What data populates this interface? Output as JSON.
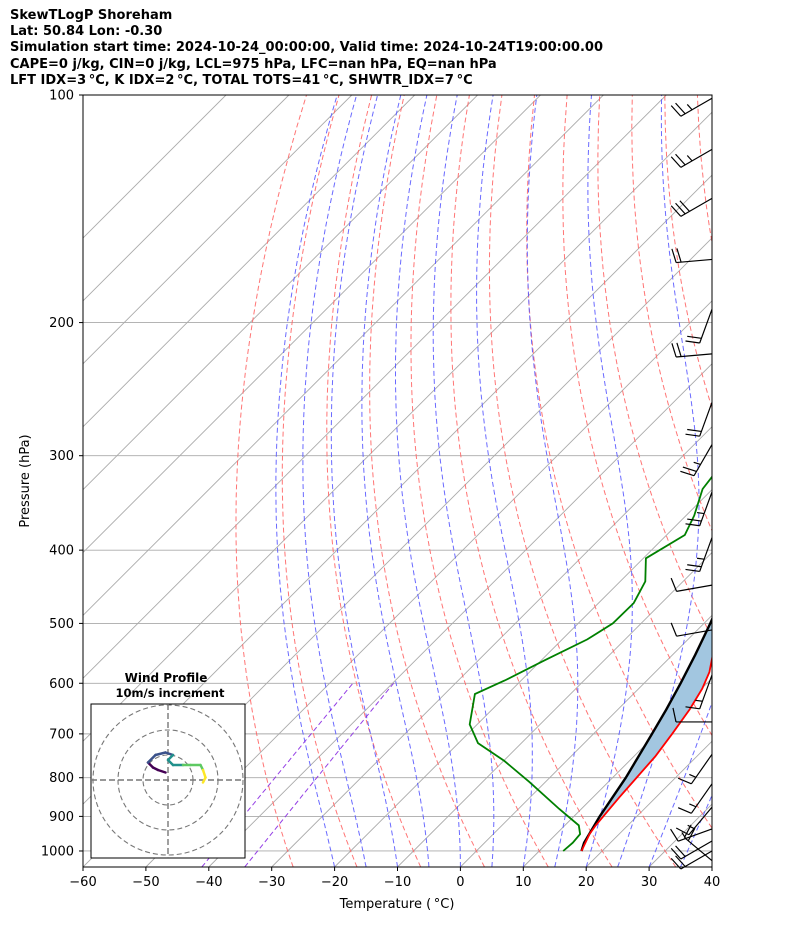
{
  "header": {
    "line1": "SkewTLogP Shoreham",
    "line2": "Lat: 50.84   Lon: -0.30",
    "line3": "Simulation start time: 2024-10-24_00:00:00, Valid time: 2024-10-24T19:00:00.00",
    "line4": "CAPE=0 j/kg, CIN=0 j/kg, LCL=975 hPa, LFC=nan hPa, EQ=nan hPa",
    "line5": "LFT IDX=3 °C, K IDX=2 °C, TOTAL TOTS=41 °C, SHWTR_IDX=7 °C"
  },
  "chart_data": {
    "type": "line",
    "xlabel": "Temperature ( °C)",
    "ylabel": "Pressure (hPa)",
    "x_ticks": [
      "−60",
      "−50",
      "−40",
      "−30",
      "−20",
      "−10",
      "0",
      "10",
      "20",
      "30",
      "40"
    ],
    "y_ticks": [
      "100",
      "200",
      "300",
      "400",
      "500",
      "600",
      "700",
      "800",
      "900",
      "1000"
    ],
    "xlim": [
      -60,
      40
    ],
    "ylim": [
      1050,
      100
    ],
    "y_scale": "log",
    "grid": true,
    "colors": {
      "temperature": "#ff0000",
      "dewpoint": "#008000",
      "parcel": "#000000",
      "shading": "#a2c6e0",
      "dry_adiabats": "#ff6666",
      "moist_adiabats": "#5a5aff",
      "mixing_ratio": "#8a2be2",
      "isotherms": "#aaaaaa"
    },
    "series": [
      {
        "key": "temperature",
        "points": [
          [
            16.7,
            1000
          ],
          [
            16.0,
            975
          ],
          [
            15.3,
            950
          ],
          [
            14.9,
            925
          ],
          [
            14.2,
            850
          ],
          [
            13.4,
            750
          ],
          [
            12.5,
            700
          ],
          [
            11.4,
            650
          ],
          [
            10.1,
            610
          ],
          [
            8.6,
            580
          ],
          [
            6.0,
            545
          ],
          [
            4.0,
            518
          ],
          [
            2.0,
            492
          ],
          [
            0.3,
            465
          ],
          [
            -1.0,
            440
          ],
          [
            -2.0,
            420
          ],
          [
            -4.6,
            385
          ],
          [
            -6.6,
            360
          ],
          [
            -8.8,
            335
          ],
          [
            -10.3,
            310
          ],
          [
            -11.6,
            285
          ],
          [
            -12.6,
            260
          ],
          [
            -13.3,
            235
          ],
          [
            -13.1,
            212
          ],
          [
            -11.5,
            197
          ],
          [
            -9.0,
            180
          ],
          [
            -6.0,
            164
          ],
          [
            -4.3,
            150
          ],
          [
            -2.7,
            137
          ],
          [
            -1.6,
            125
          ],
          [
            -0.2,
            112
          ],
          [
            1.0,
            101
          ]
        ]
      },
      {
        "key": "dewpoint",
        "points": [
          [
            13.8,
            1000
          ],
          [
            14.0,
            975
          ],
          [
            13.8,
            950
          ],
          [
            12.2,
            925
          ],
          [
            6.5,
            880
          ],
          [
            -2.6,
            810
          ],
          [
            -9.9,
            760
          ],
          [
            -16.9,
            720
          ],
          [
            -21.2,
            680
          ],
          [
            -25.2,
            620
          ],
          [
            -22.6,
            595
          ],
          [
            -19.5,
            560
          ],
          [
            -16.0,
            525
          ],
          [
            -14.5,
            500
          ],
          [
            -14.4,
            470
          ],
          [
            -16.0,
            440
          ],
          [
            -19.6,
            410
          ],
          [
            -17.1,
            382
          ],
          [
            -18.7,
            360
          ],
          [
            -21.6,
            332
          ],
          [
            -22.4,
            310
          ],
          [
            -24.6,
            280
          ],
          [
            -25.9,
            262
          ],
          [
            -26.1,
            245
          ],
          [
            -26.9,
            225
          ],
          [
            -29.2,
            200
          ],
          [
            -29.6,
            186
          ],
          [
            -32.8,
            172
          ],
          [
            -35.2,
            162
          ],
          [
            -37.9,
            150
          ],
          [
            -38.0,
            141
          ],
          [
            -36.0,
            132
          ],
          [
            -34.0,
            122
          ],
          [
            -31.6,
            110
          ],
          [
            -29.0,
            101
          ]
        ]
      },
      {
        "key": "parcel",
        "points": [
          [
            16.7,
            1000
          ],
          [
            15.8,
            975
          ],
          [
            14.1,
            900
          ],
          [
            12.1,
            800
          ],
          [
            9.3,
            700
          ],
          [
            7.7,
            650
          ],
          [
            5.8,
            600
          ],
          [
            3.6,
            550
          ],
          [
            1.0,
            500
          ],
          [
            -2.1,
            450
          ],
          [
            -6.0,
            400
          ],
          [
            -10.9,
            350
          ],
          [
            -17.2,
            300
          ],
          [
            -25.2,
            250
          ],
          [
            -35.3,
            200
          ],
          [
            -48.0,
            150
          ],
          [
            -64.2,
            100
          ]
        ]
      }
    ],
    "hodograph": {
      "title": "Wind Profile",
      "subtitle": "10m/s increment",
      "rings_ms": [
        10,
        20,
        30
      ],
      "points": [
        [
          -1,
          3
        ],
        [
          -4,
          4
        ],
        [
          -6,
          5
        ],
        [
          -8,
          7
        ],
        [
          -5,
          10
        ],
        [
          -1,
          11
        ],
        [
          2,
          10
        ],
        [
          0,
          8
        ],
        [
          2,
          6
        ],
        [
          6,
          6
        ],
        [
          9,
          6
        ],
        [
          13,
          6
        ],
        [
          14,
          4
        ],
        [
          15,
          1
        ],
        [
          14,
          -1
        ]
      ]
    },
    "wind_barbs": [
      {
        "p": 101,
        "dir": 240,
        "kt": 25
      },
      {
        "p": 118,
        "dir": 240,
        "kt": 25
      },
      {
        "p": 137,
        "dir": 240,
        "kt": 30
      },
      {
        "p": 165,
        "dir": 265,
        "kt": 20
      },
      {
        "p": 192,
        "dir": 200,
        "kt": 20
      },
      {
        "p": 220,
        "dir": 265,
        "kt": 20
      },
      {
        "p": 255,
        "dir": 200,
        "kt": 20
      },
      {
        "p": 290,
        "dir": 210,
        "kt": 25
      },
      {
        "p": 335,
        "dir": 200,
        "kt": 25
      },
      {
        "p": 385,
        "dir": 200,
        "kt": 25
      },
      {
        "p": 445,
        "dir": 260,
        "kt": 10
      },
      {
        "p": 510,
        "dir": 260,
        "kt": 10
      },
      {
        "p": 585,
        "dir": 200,
        "kt": 15
      },
      {
        "p": 675,
        "dir": 270,
        "kt": 10
      },
      {
        "p": 745,
        "dir": 215,
        "kt": 15
      },
      {
        "p": 815,
        "dir": 215,
        "kt": 15
      },
      {
        "p": 875,
        "dir": 220,
        "kt": 15
      },
      {
        "p": 935,
        "dir": 250,
        "kt": 15
      },
      {
        "p": 970,
        "dir": 240,
        "kt": 20
      },
      {
        "p": 1000,
        "dir": 240,
        "kt": 20
      },
      {
        "p": 1030,
        "dir": 310,
        "kt": 20
      }
    ]
  }
}
